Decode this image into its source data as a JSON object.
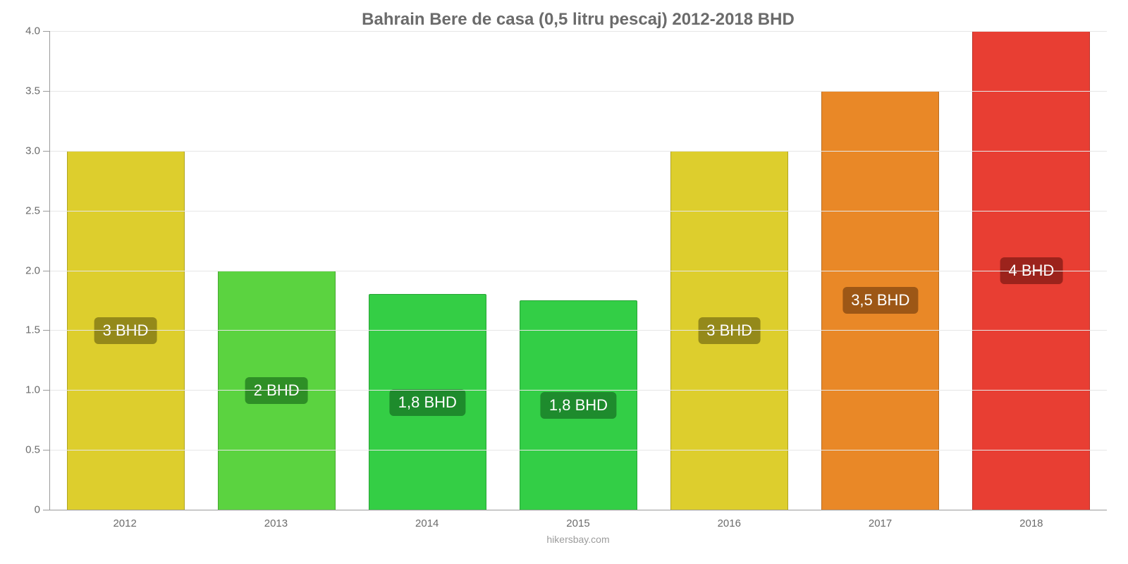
{
  "chart": {
    "type": "bar",
    "title": "Bahrain Bere de casa (0,5 litru pescaj) 2012-2018 BHD",
    "title_fontsize": 24,
    "title_color": "#6b6b6b",
    "background_color": "#ffffff",
    "grid_color": "#e6e6e6",
    "axis_color": "#9a9a9a",
    "ylim": [
      0,
      4.0
    ],
    "ytick_step": 0.5,
    "yticks": [
      "0",
      "0.5",
      "1.0",
      "1.5",
      "2.0",
      "2.5",
      "3.0",
      "3.5",
      "4.0"
    ],
    "ylabel_fontsize": 15,
    "ylabel_color": "#6b6b6b",
    "categories": [
      "2012",
      "2013",
      "2014",
      "2015",
      "2016",
      "2017",
      "2018"
    ],
    "xlabel_fontsize": 15,
    "xlabel_color": "#6b6b6b",
    "bar_width_pct": 78,
    "bars": [
      {
        "value": 3.0,
        "label": "3 BHD",
        "fill": "#ddce2d",
        "stroke": "#b0a423",
        "badge_bg": "#94891a"
      },
      {
        "value": 2.0,
        "label": "2 BHD",
        "fill": "#5bd340",
        "stroke": "#48a832",
        "badge_bg": "#2e8f26"
      },
      {
        "value": 1.8,
        "label": "1,8 BHD",
        "fill": "#34ce45",
        "stroke": "#29a437",
        "badge_bg": "#1e8b2c"
      },
      {
        "value": 1.75,
        "label": "1,8 BHD",
        "fill": "#33ce46",
        "stroke": "#29a438",
        "badge_bg": "#1e8b2d"
      },
      {
        "value": 3.0,
        "label": "3 BHD",
        "fill": "#ddce2d",
        "stroke": "#b0a423",
        "badge_bg": "#94891a"
      },
      {
        "value": 3.5,
        "label": "3,5 BHD",
        "fill": "#e98827",
        "stroke": "#ba6c1f",
        "badge_bg": "#9d5716"
      },
      {
        "value": 4.0,
        "label": "4 BHD",
        "fill": "#e83e33",
        "stroke": "#ba3128",
        "badge_bg": "#9c231c"
      }
    ],
    "badge_fontsize": 22,
    "badge_text_color": "#ffffff",
    "source_text": "hikersbay.com",
    "source_fontsize": 14,
    "source_color": "#9c9c9c"
  }
}
